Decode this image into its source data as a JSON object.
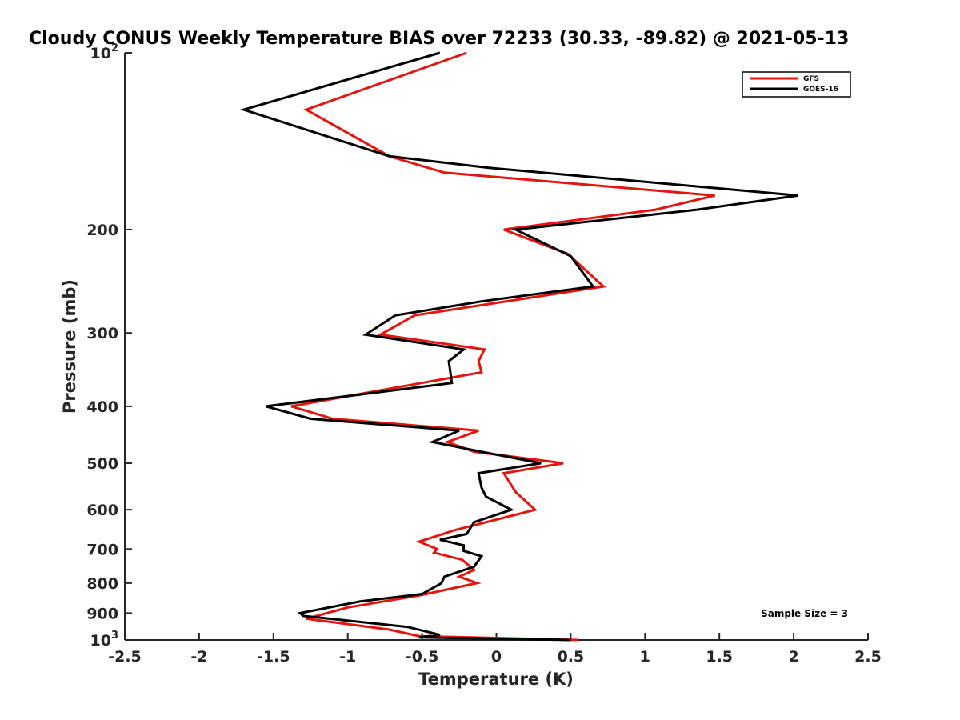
{
  "chart_data": {
    "type": "line",
    "title": "Cloudy CONUS Weekly Temperature BIAS over 72233 (30.33, -89.82) @ 2021-05-13",
    "xlabel": "Temperature (K)",
    "ylabel": "Pressure (mb)",
    "xlim": [
      -2.5,
      2.5
    ],
    "ylim": [
      1000,
      100
    ],
    "yscale": "log",
    "grid": false,
    "legend_position": "top-right",
    "xticks": [
      -2.5,
      -2,
      -1.5,
      -1,
      -0.5,
      0,
      0.5,
      1,
      1.5,
      2,
      2.5
    ],
    "xtick_labels": [
      "-2.5",
      "-2",
      "-1.5",
      "-1",
      "-0.5",
      "0",
      "0.5",
      "1",
      "1.5",
      "2",
      "2.5"
    ],
    "yticks": [
      100,
      200,
      300,
      400,
      500,
      600,
      700,
      800,
      900,
      1000
    ],
    "ytick_labels": [
      {
        "base": "10",
        "exp": "2"
      },
      {
        "base": "200"
      },
      {
        "base": "300"
      },
      {
        "base": "400"
      },
      {
        "base": "500"
      },
      {
        "base": "600"
      },
      {
        "base": "700"
      },
      {
        "base": "800"
      },
      {
        "base": "900"
      },
      {
        "base": "10",
        "exp": "3"
      }
    ],
    "series": [
      {
        "name": "GFS",
        "color": "#e3150f",
        "points": [
          [
            -0.2,
            100
          ],
          [
            -1.28,
            125
          ],
          [
            -0.72,
            150
          ],
          [
            -0.35,
            160
          ],
          [
            1.47,
            175
          ],
          [
            1.07,
            185
          ],
          [
            0.05,
            200
          ],
          [
            0.48,
            220
          ],
          [
            0.72,
            250
          ],
          [
            -0.55,
            280
          ],
          [
            -0.78,
            302
          ],
          [
            -0.08,
            320
          ],
          [
            -0.12,
            335
          ],
          [
            -0.1,
            350
          ],
          [
            -1.38,
            400
          ],
          [
            -1.1,
            420
          ],
          [
            -0.12,
            440
          ],
          [
            -0.33,
            460
          ],
          [
            -0.15,
            478
          ],
          [
            0.45,
            500
          ],
          [
            0.05,
            520
          ],
          [
            0.13,
            560
          ],
          [
            0.26,
            600
          ],
          [
            -0.28,
            650
          ],
          [
            -0.52,
            680
          ],
          [
            -0.4,
            700
          ],
          [
            -0.42,
            710
          ],
          [
            -0.23,
            730
          ],
          [
            -0.15,
            760
          ],
          [
            -0.25,
            780
          ],
          [
            -0.13,
            800
          ],
          [
            -0.52,
            840
          ],
          [
            -1.0,
            880
          ],
          [
            -1.28,
            920
          ],
          [
            -0.72,
            960
          ],
          [
            -0.52,
            985
          ],
          [
            0.55,
            1000
          ]
        ]
      },
      {
        "name": "GOES-16",
        "color": "#000000",
        "points": [
          [
            -0.38,
            100
          ],
          [
            -1.7,
            125
          ],
          [
            -0.72,
            150
          ],
          [
            -0.05,
            157
          ],
          [
            2.03,
            175
          ],
          [
            1.35,
            185
          ],
          [
            0.13,
            200
          ],
          [
            0.5,
            222
          ],
          [
            0.65,
            250
          ],
          [
            -0.1,
            265
          ],
          [
            -0.68,
            280
          ],
          [
            -0.88,
            302
          ],
          [
            -0.22,
            320
          ],
          [
            -0.32,
            335
          ],
          [
            -0.3,
            365
          ],
          [
            -1.55,
            400
          ],
          [
            -1.25,
            420
          ],
          [
            -0.25,
            440
          ],
          [
            -0.43,
            460
          ],
          [
            -0.1,
            478
          ],
          [
            0.3,
            500
          ],
          [
            -0.12,
            520
          ],
          [
            -0.1,
            550
          ],
          [
            -0.07,
            570
          ],
          [
            0.1,
            600
          ],
          [
            -0.15,
            630
          ],
          [
            -0.2,
            660
          ],
          [
            -0.38,
            675
          ],
          [
            -0.22,
            690
          ],
          [
            -0.22,
            705
          ],
          [
            -0.1,
            720
          ],
          [
            -0.15,
            750
          ],
          [
            -0.35,
            780
          ],
          [
            -0.37,
            800
          ],
          [
            -0.5,
            835
          ],
          [
            -0.92,
            860
          ],
          [
            -1.32,
            900
          ],
          [
            -1.3,
            910
          ],
          [
            -0.6,
            950
          ],
          [
            -0.38,
            980
          ],
          [
            -0.52,
            990
          ],
          [
            0.5,
            1000
          ]
        ]
      }
    ],
    "annotation": "Sample Size = 3"
  }
}
